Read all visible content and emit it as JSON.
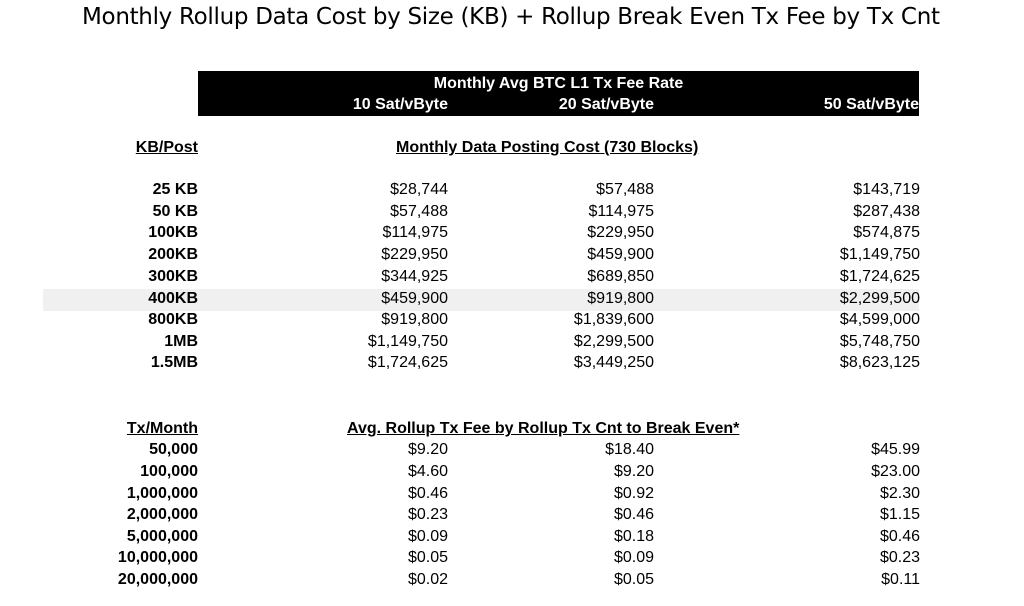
{
  "title": "Monthly Rollup Data Cost by Size (KB) + Rollup Break Even Tx Fee by Tx Cnt",
  "header": {
    "main": "Monthly Avg BTC L1 Tx Fee Rate",
    "rates": [
      "10 Sat/vByte",
      "20 Sat/vByte",
      "50 Sat/vByte"
    ]
  },
  "section1": {
    "row_header": "KB/Post",
    "title": "Monthly Data Posting Cost (730 Blocks)",
    "rows": [
      {
        "label": "25 KB",
        "values": [
          "$28,744",
          "$57,488",
          "$143,719"
        ]
      },
      {
        "label": "50 KB",
        "values": [
          "$57,488",
          "$114,975",
          "$287,438"
        ]
      },
      {
        "label": "100KB",
        "values": [
          "$114,975",
          "$229,950",
          "$574,875"
        ]
      },
      {
        "label": "200KB",
        "values": [
          "$229,950",
          "$459,900",
          "$1,149,750"
        ]
      },
      {
        "label": "300KB",
        "values": [
          "$344,925",
          "$689,850",
          "$1,724,625"
        ]
      },
      {
        "label": "400KB",
        "values": [
          "$459,900",
          "$919,800",
          "$2,299,500"
        ]
      },
      {
        "label": "800KB",
        "values": [
          "$919,800",
          "$1,839,600",
          "$4,599,000"
        ]
      },
      {
        "label": "1MB",
        "values": [
          "$1,149,750",
          "$2,299,500",
          "$5,748,750"
        ]
      },
      {
        "label": "1.5MB",
        "values": [
          "$1,724,625",
          "$3,449,250",
          "$8,623,125"
        ]
      }
    ]
  },
  "section2": {
    "row_header": "Tx/Month",
    "title": "Avg. Rollup Tx Fee by Rollup Tx Cnt to Break Even*",
    "rows": [
      {
        "label": "50,000",
        "values": [
          "$9.20",
          "$18.40",
          "$45.99"
        ]
      },
      {
        "label": "100,000",
        "values": [
          "$4.60",
          "$9.20",
          "$23.00"
        ]
      },
      {
        "label": "1,000,000",
        "values": [
          "$0.46",
          "$0.92",
          "$2.30"
        ]
      },
      {
        "label": "2,000,000",
        "values": [
          "$0.23",
          "$0.46",
          "$1.15"
        ]
      },
      {
        "label": "5,000,000",
        "values": [
          "$0.09",
          "$0.18",
          "$0.46"
        ]
      },
      {
        "label": "10,000,000",
        "values": [
          "$0.05",
          "$0.09",
          "$0.23"
        ]
      },
      {
        "label": "20,000,000",
        "values": [
          "$0.02",
          "$0.05",
          "$0.11"
        ]
      }
    ]
  }
}
